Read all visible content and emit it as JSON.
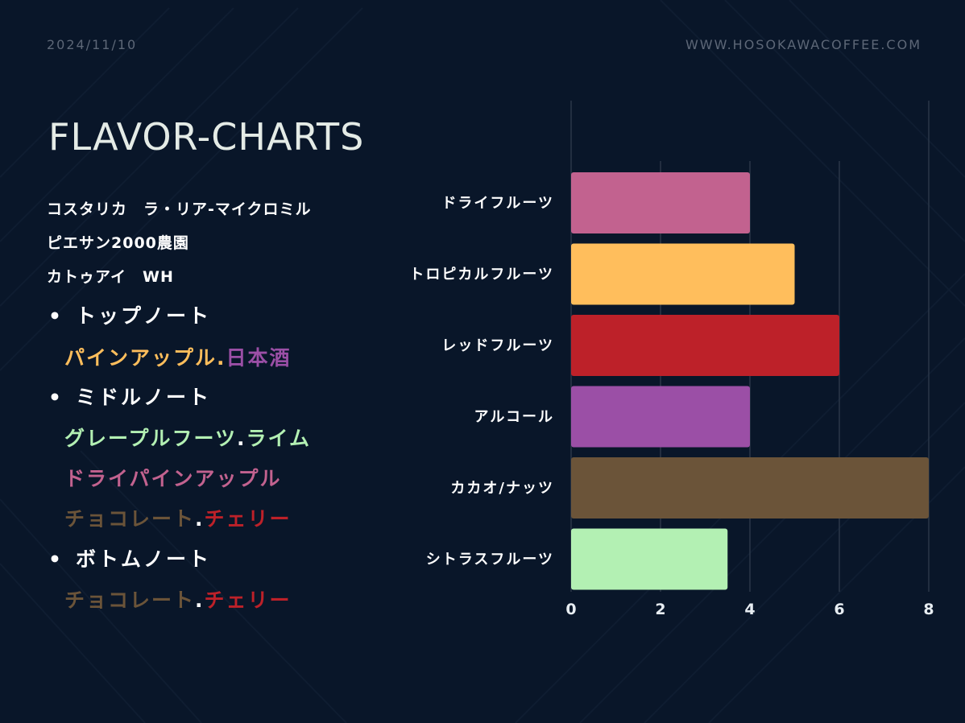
{
  "header": {
    "date": "2024/11/10",
    "site": "WWW.HOSOKAWACOFFEE.COM"
  },
  "title": "FLAVOR-CHARTS",
  "info": {
    "line1": "コスタリカ　ラ・リア-マイクロミル",
    "line2": "ピエサン2000農園",
    "line3": "カトゥアイ　WH"
  },
  "notes": {
    "bullet": "•",
    "top": {
      "label": "トップノート",
      "lines": [
        [
          {
            "text": "パインアップル",
            "color": "#ffbe5c"
          },
          {
            "text": ".",
            "color": "#ffbe5c"
          },
          {
            "text": "日本酒",
            "color": "#9b4fa6"
          }
        ]
      ]
    },
    "middle": {
      "label": "ミドルノート",
      "lines": [
        [
          {
            "text": "グレープルフーツ",
            "color": "#b3f0b3"
          },
          {
            "text": ".",
            "color": "#ffffff"
          },
          {
            "text": "ライム",
            "color": "#b3f0b3"
          }
        ],
        [
          {
            "text": "ドライパインアップル",
            "color": "#c2628f"
          }
        ],
        [
          {
            "text": "チョコレート",
            "color": "#6b5439"
          },
          {
            "text": ".",
            "color": "#ffffff"
          },
          {
            "text": "チェリー",
            "color": "#bd2129"
          }
        ]
      ]
    },
    "bottom": {
      "label": "ボトムノート",
      "lines": [
        [
          {
            "text": "チョコレート",
            "color": "#6b5439"
          },
          {
            "text": ".",
            "color": "#ffffff"
          },
          {
            "text": "チェリー",
            "color": "#bd2129"
          }
        ]
      ]
    }
  },
  "chart_data": {
    "type": "bar",
    "orientation": "horizontal",
    "categories": [
      "ドライフルーツ",
      "トロピカルフルーツ",
      "レッドフルーツ",
      "アルコール",
      "カカオ/ナッツ",
      "シトラスフルーツ"
    ],
    "values": [
      4,
      5,
      6,
      4,
      8,
      3.5
    ],
    "colors": [
      "#c2628f",
      "#ffbe5c",
      "#bd2129",
      "#9b4fa6",
      "#6b5439",
      "#b3f0b3"
    ],
    "xlim": [
      0,
      8
    ],
    "xticks": [
      "0",
      "2",
      "4",
      "6",
      "8"
    ],
    "grid": true
  }
}
